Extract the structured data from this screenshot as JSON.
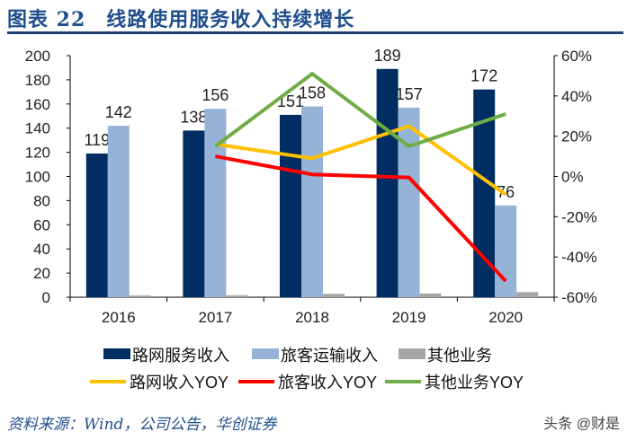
{
  "title": "图表 22　线路使用服务收入持续增长",
  "source": "资料来源：Wind，公司公告，华创证券",
  "watermark": "头条 @财是",
  "chart_data": {
    "type": "bar+line",
    "title": "",
    "categories": [
      "2016",
      "2017",
      "2018",
      "2019",
      "2020"
    ],
    "ylim": [
      0,
      200
    ],
    "yticks": [
      0,
      20,
      40,
      60,
      80,
      100,
      120,
      140,
      160,
      180,
      200
    ],
    "y2lim": [
      -60,
      60
    ],
    "y2ticks": [
      "-60%",
      "-40%",
      "-20%",
      "0%",
      "20%",
      "40%",
      "60%"
    ],
    "y2tick_values": [
      -60,
      -40,
      -20,
      0,
      20,
      40,
      60
    ],
    "grid": false,
    "legend_position": "bottom",
    "bar_series": [
      {
        "name": "路网服务收入",
        "color": "#002d62",
        "values": [
          119,
          138,
          151,
          189,
          172
        ],
        "labels": [
          "119",
          "138",
          "151",
          "189",
          "172"
        ]
      },
      {
        "name": "旅客运输收入",
        "color": "#95b3d7",
        "values": [
          142,
          156,
          158,
          157,
          76
        ],
        "labels": [
          "142",
          "156",
          "158",
          "157",
          "76"
        ]
      },
      {
        "name": "其他业务",
        "color": "#a6a6a6",
        "values": [
          1.5,
          1.6,
          2.8,
          3.1,
          4.2
        ],
        "labels": []
      }
    ],
    "line_series": [
      {
        "name": "路网收入YOY",
        "color": "#ffc000",
        "x": [
          "2017",
          "2018",
          "2019",
          "2020"
        ],
        "values": [
          16,
          9,
          25,
          -9
        ]
      },
      {
        "name": "旅客收入YOY",
        "color": "#ff0000",
        "x": [
          "2017",
          "2018",
          "2019",
          "2020"
        ],
        "values": [
          10,
          1,
          -0.5,
          -52
        ]
      },
      {
        "name": "其他业务YOY",
        "color": "#70ad47",
        "x": [
          "2017",
          "2018",
          "2019",
          "2020"
        ],
        "values": [
          15,
          51,
          15,
          31
        ]
      }
    ]
  }
}
